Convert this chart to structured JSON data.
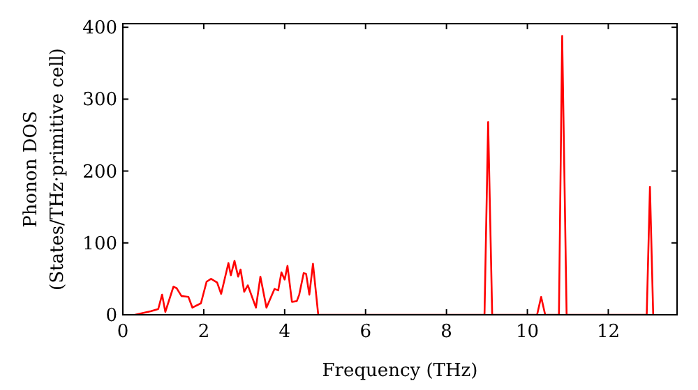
{
  "chart_data": {
    "type": "line",
    "xlabel": "Frequency (THz)",
    "ylabel": "Phonon DOS\n(States/THz·primitive cell)",
    "xlim": [
      0,
      13.7
    ],
    "ylim": [
      0,
      405
    ],
    "xticks": [
      0,
      2,
      4,
      6,
      8,
      10,
      12
    ],
    "yticks": [
      0,
      100,
      200,
      300,
      400
    ],
    "grid": false,
    "marker": "none",
    "line_style": "solid",
    "series": [
      {
        "color": "#ff0000",
        "x": [
          0.3,
          0.7,
          0.875,
          0.97,
          1.05,
          1.25,
          1.33,
          1.45,
          1.62,
          1.72,
          1.93,
          2.07,
          2.18,
          2.33,
          2.43,
          2.61,
          2.67,
          2.76,
          2.85,
          2.91,
          3.0,
          3.09,
          3.29,
          3.4,
          3.55,
          3.75,
          3.84,
          3.92,
          4.0,
          4.07,
          4.18,
          4.3,
          4.36,
          4.47,
          4.53,
          4.61,
          4.7,
          4.83,
          8.94,
          9.03,
          9.13,
          10.24,
          10.34,
          10.44,
          10.78,
          10.86,
          10.97,
          12.95,
          13.03,
          13.11
        ],
        "values": [
          0,
          5,
          8,
          28,
          4,
          39,
          37,
          26,
          25,
          10,
          16,
          46,
          50,
          45,
          29,
          72,
          55,
          75,
          53,
          63,
          32,
          41,
          10,
          53,
          10,
          36,
          34,
          59,
          49,
          68,
          18,
          19,
          28,
          58,
          57,
          28,
          71,
          0,
          0,
          268,
          0,
          0,
          25,
          0,
          0,
          388,
          0,
          0,
          178,
          0
        ]
      }
    ]
  }
}
